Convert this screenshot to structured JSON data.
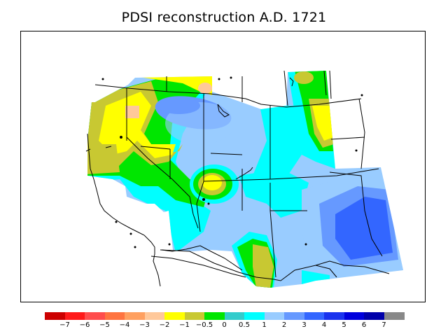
{
  "title": "PDSI reconstruction A.D. 1721",
  "legend": {
    "colors": [
      "#cc0000",
      "#ff1a1a",
      "#ff4d4d",
      "#ff7440",
      "#ffa060",
      "#ffc89a",
      "#ffff00",
      "#c8c832",
      "#00e600",
      "#33cccc",
      "#00ffff",
      "#99ccff",
      "#6699ff",
      "#3366ff",
      "#1a33ee",
      "#0000dd",
      "#0000aa",
      "#888888"
    ],
    "labels": [
      "−7",
      "−6",
      "−5",
      "−4",
      "−3",
      "−2",
      "−1",
      "−0.5",
      "0",
      "0.5",
      "1",
      "2",
      "3",
      "4",
      "5",
      "6",
      "7"
    ]
  }
}
